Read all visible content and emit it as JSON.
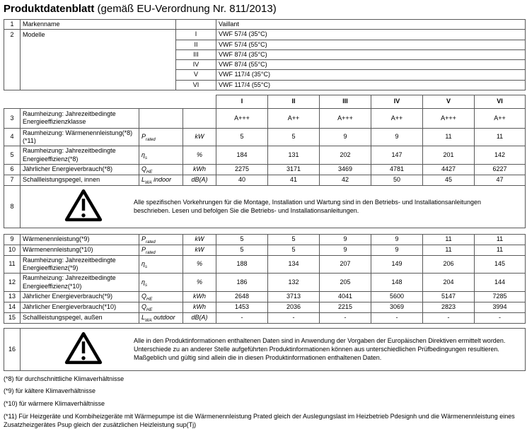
{
  "title": {
    "bold": "Produktdatenblatt",
    "rest": " (gemäß EU-Verordnung Nr. 811/2013)"
  },
  "info_table": {
    "brand_row": {
      "num": "1",
      "label": "Markenname",
      "value": "Vaillant"
    },
    "models_row": {
      "num": "2",
      "label": "Modelle",
      "models": [
        {
          "roman": "I",
          "name": "VWF 57/4 (35°C)"
        },
        {
          "roman": "II",
          "name": "VWF 57/4 (55°C)"
        },
        {
          "roman": "III",
          "name": "VWF 87/4 (35°C)"
        },
        {
          "roman": "IV",
          "name": "VWF 87/4 (55°C)"
        },
        {
          "roman": "V",
          "name": "VWF 117/4 (35°C)"
        },
        {
          "roman": "VI",
          "name": "VWF 117/4 (55°C)"
        }
      ]
    }
  },
  "column_headers": [
    "I",
    "II",
    "III",
    "IV",
    "V",
    "VI"
  ],
  "table1": {
    "rows": [
      {
        "num": "3",
        "label": "Raumheizung: Jahrezeitbedingte Energieeffizienzklasse",
        "symbol": null,
        "unit": "",
        "values": [
          "A+++",
          "A++",
          "A+++",
          "A++",
          "A+++",
          "A++"
        ]
      },
      {
        "num": "4",
        "label": "Raumheizung: Wärmenennleistung(*8) (*11)",
        "symbol": {
          "base": "P",
          "sub": "rated",
          "suffix": ""
        },
        "unit": "kW",
        "values": [
          "5",
          "5",
          "9",
          "9",
          "11",
          "11"
        ]
      },
      {
        "num": "5",
        "label": "Raumheizung: Jahrezeitbedingte Energieeffizienz(*8)",
        "symbol": {
          "base": "η",
          "sub": "s",
          "suffix": ""
        },
        "unit": "%",
        "values": [
          "184",
          "131",
          "202",
          "147",
          "201",
          "142"
        ]
      },
      {
        "num": "6",
        "label": "Jährlicher Energieverbrauch(*8)",
        "symbol": {
          "base": "Q",
          "sub": "HE",
          "suffix": ""
        },
        "unit": "kWh",
        "values": [
          "2275",
          "3171",
          "3469",
          "4781",
          "4427",
          "6227"
        ]
      },
      {
        "num": "7",
        "label": "Schallleistungspegel, innen",
        "symbol": {
          "base": "L",
          "sub": "WA",
          "suffix": " indoor"
        },
        "unit": "dB(A)",
        "values": [
          "40",
          "41",
          "42",
          "50",
          "45",
          "47"
        ]
      }
    ]
  },
  "warning8": {
    "num": "8",
    "icon": "warning-triangle-icon",
    "text": "Alle spezifischen Vorkehrungen für die Montage, Installation und Wartung sind in den Betriebs- und Installationsanleitungen beschrieben. Lesen und befolgen Sie die Betriebs- und Installationsanleitungen."
  },
  "table2": {
    "rows": [
      {
        "num": "9",
        "label": "Wärmenennleistung(*9)",
        "symbol": {
          "base": "P",
          "sub": "rated",
          "suffix": ""
        },
        "unit": "kW",
        "values": [
          "5",
          "5",
          "9",
          "9",
          "11",
          "11"
        ]
      },
      {
        "num": "10",
        "label": "Wärmenennleistung(*10)",
        "symbol": {
          "base": "P",
          "sub": "rated",
          "suffix": ""
        },
        "unit": "kW",
        "values": [
          "5",
          "5",
          "9",
          "9",
          "11",
          "11"
        ]
      },
      {
        "num": "11",
        "label": "Raumheizung: Jahrezeitbedingte Energieeffizienz(*9)",
        "symbol": {
          "base": "η",
          "sub": "s",
          "suffix": ""
        },
        "unit": "%",
        "values": [
          "188",
          "134",
          "207",
          "149",
          "206",
          "145"
        ]
      },
      {
        "num": "12",
        "label": "Raumheizung: Jahrezeitbedingte Energieeffizienz(*10)",
        "symbol": {
          "base": "η",
          "sub": "s",
          "suffix": ""
        },
        "unit": "%",
        "values": [
          "186",
          "132",
          "205",
          "148",
          "204",
          "144"
        ]
      },
      {
        "num": "13",
        "label": "Jährlicher Energieverbrauch(*9)",
        "symbol": {
          "base": "Q",
          "sub": "HE",
          "suffix": ""
        },
        "unit": "kWh",
        "values": [
          "2648",
          "3713",
          "4041",
          "5600",
          "5147",
          "7285"
        ]
      },
      {
        "num": "14",
        "label": "Jährlicher Energieverbrauch(*10)",
        "symbol": {
          "base": "Q",
          "sub": "HE",
          "suffix": ""
        },
        "unit": "kWh",
        "values": [
          "1453",
          "2036",
          "2215",
          "3069",
          "2823",
          "3994"
        ]
      },
      {
        "num": "15",
        "label": "Schallleistungspegel, außen",
        "symbol": {
          "base": "L",
          "sub": "WA",
          "suffix": " outdoor"
        },
        "unit": "dB(A)",
        "values": [
          "-",
          "-",
          "-",
          "-",
          "-",
          "-"
        ]
      }
    ]
  },
  "warning16": {
    "num": "16",
    "icon": "warning-triangle-icon",
    "text": "Alle in den Produktinformationen enthaltenen Daten sind in Anwendung der Vorgaben der Europäischen Direktiven ermittelt worden. Unterschiede zu an anderer Stelle aufgeführten Produktinformationen können aus unterschiedlichen Prüfbedingungen resultieren. Maßgeblich und gültig sind allein die in diesen Produktinformationen enthaltenen Daten."
  },
  "footnotes": [
    "(*8) für durchschnittliche Klimaverhältnisse",
    "(*9) für kältere Klimaverhältnisse",
    "(*10) für wärmere Klimaverhältnisse",
    "(*11) Für Heizgeräte und Kombiheizgeräte mit Wärmepumpe ist die Wärmenennleistung Prated gleich der Auslegungslast im Heizbetrieb Pdesignh und die Wärmenennleistung eines Zusatzheizgerätes Psup gleich der zusätzlichen Heizleistung sup(Tj)"
  ]
}
